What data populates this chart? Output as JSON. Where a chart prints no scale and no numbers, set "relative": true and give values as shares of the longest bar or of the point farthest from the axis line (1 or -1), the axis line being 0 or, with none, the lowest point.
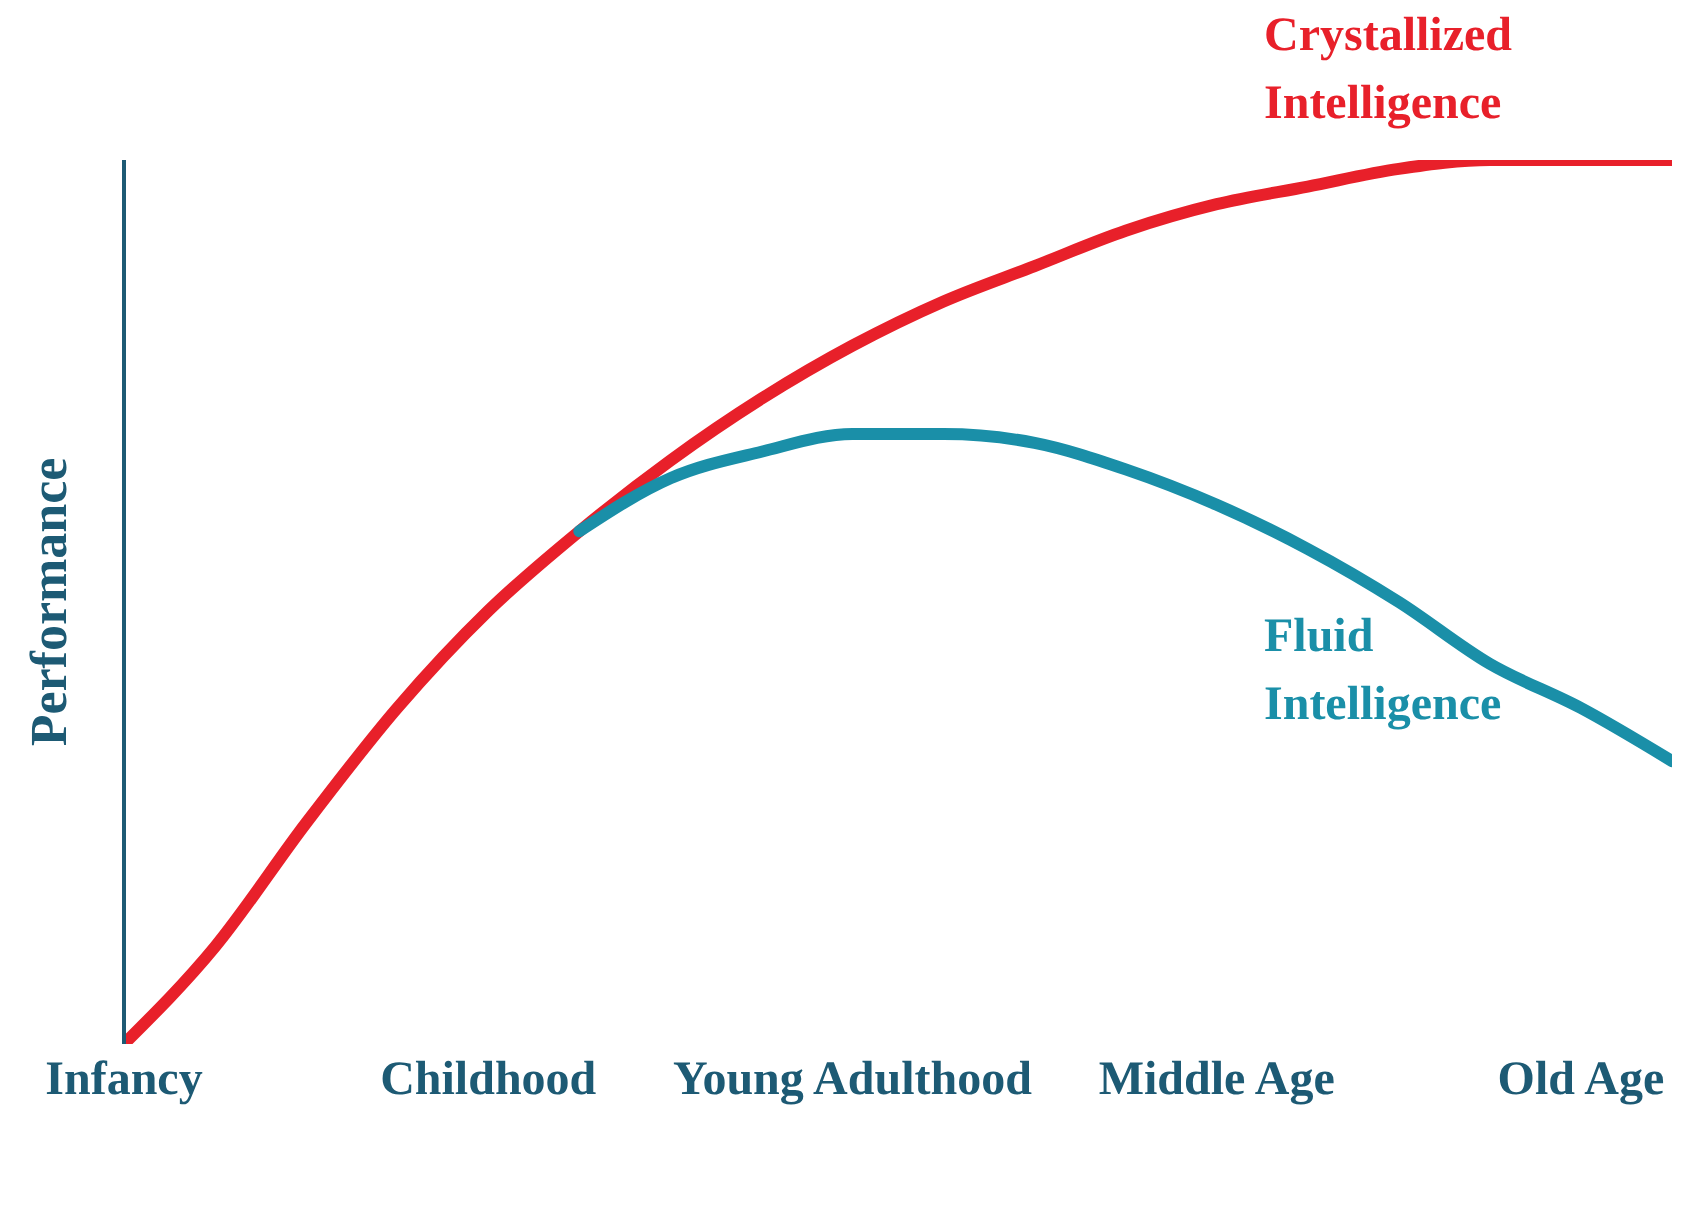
{
  "chart_data": {
    "type": "line",
    "relative": true,
    "ylabel": "Performance",
    "categories": [
      "Infancy",
      null,
      null,
      null,
      "Childhood",
      null,
      null,
      null,
      "Young Adulthood",
      null,
      null,
      null,
      "Middle Age",
      null,
      null,
      null,
      "Old Age",
      null
    ],
    "grid": false,
    "legend": false,
    "marker": "none",
    "line_style": "solid",
    "series": [
      {
        "name": "Crystallized Intelligence",
        "color": "#e8202a",
        "values": [
          0,
          0.11,
          0.25,
          0.38,
          0.49,
          0.58,
          0.66,
          0.73,
          0.79,
          0.84,
          0.88,
          0.92,
          0.95,
          0.97,
          0.99,
          1,
          1,
          1
        ]
      },
      {
        "name": "Fluid Intelligence",
        "color": "#1a8fa8",
        "values": [
          null,
          null,
          null,
          null,
          null,
          0.58,
          0.64,
          0.67,
          0.69,
          0.69,
          0.68,
          0.65,
          0.61,
          0.56,
          0.5,
          0.43,
          0.38,
          0.32
        ]
      }
    ]
  }
}
